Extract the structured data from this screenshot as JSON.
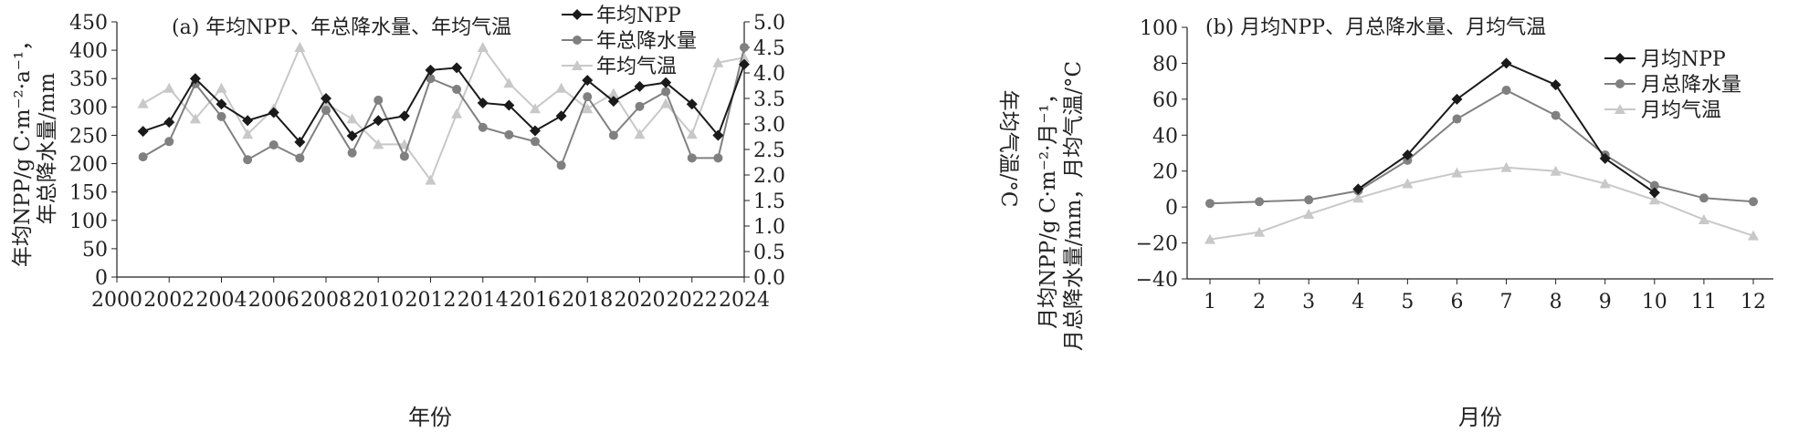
{
  "chart_data": [
    {
      "type": "line",
      "title": "(a) 年均NPP、年总降水量、年均气温",
      "xlabel": "年份",
      "ylabel": "年均NPP/g C·m⁻²·a⁻¹，年总降水量/mm",
      "ylabel_line1": "年均NPP/g C·m⁻²·a⁻¹，",
      "ylabel_line2": "年总降水量/mm",
      "y2label": "年均气温/°C",
      "xlim": [
        2000,
        2024
      ],
      "ylim": [
        0,
        450
      ],
      "y2lim": [
        0.0,
        5.0
      ],
      "xticks": [
        "2000",
        "2002",
        "2004",
        "2006",
        "2008",
        "2010",
        "2012",
        "2014",
        "2016",
        "2018",
        "2020",
        "2022",
        "2024"
      ],
      "yticks": [
        "0",
        "50",
        "100",
        "150",
        "200",
        "250",
        "300",
        "350",
        "400",
        "450"
      ],
      "y2ticks": [
        "0.0",
        "0.5",
        "1.0",
        "1.5",
        "2.0",
        "2.5",
        "3.0",
        "3.5",
        "4.0",
        "4.5",
        "5.0"
      ],
      "legend_position": "top-right",
      "x": [
        2001,
        2002,
        2003,
        2004,
        2005,
        2006,
        2007,
        2008,
        2009,
        2010,
        2011,
        2012,
        2013,
        2014,
        2015,
        2016,
        2017,
        2018,
        2019,
        2020,
        2021,
        2022,
        2023,
        2024
      ],
      "series": [
        {
          "name": "年均NPP",
          "axis": "left",
          "marker": "diamond",
          "color": "#1a1a1a",
          "values": [
            257,
            273,
            350,
            305,
            276,
            290,
            238,
            315,
            249,
            276,
            284,
            365,
            369,
            307,
            303,
            258,
            284,
            347,
            310,
            336,
            343,
            305,
            250,
            375
          ]
        },
        {
          "name": "年总降水量",
          "axis": "left",
          "marker": "circle",
          "color": "#808080",
          "values": [
            212,
            239,
            341,
            283,
            207,
            233,
            210,
            294,
            219,
            312,
            213,
            350,
            331,
            264,
            251,
            239,
            197,
            318,
            250,
            301,
            327,
            210,
            210,
            405
          ]
        },
        {
          "name": "年均气温",
          "axis": "right",
          "marker": "triangle",
          "color": "#c8c8c8",
          "values": [
            3.4,
            3.7,
            3.1,
            3.7,
            2.8,
            3.3,
            4.5,
            3.4,
            3.1,
            2.6,
            2.6,
            1.9,
            3.2,
            4.5,
            3.8,
            3.3,
            3.7,
            3.3,
            3.6,
            2.8,
            3.4,
            2.8,
            4.2,
            4.3
          ]
        }
      ]
    },
    {
      "type": "line",
      "title": "(b) 月均NPP、月总降水量、月均气温",
      "xlabel": "月份",
      "ylabel": "月均NPP/g C·m⁻²·月⁻¹，月总降水量/mm，月均气温/°C",
      "ylabel_line1": "月均NPP/g C·m⁻²·月⁻¹，",
      "ylabel_line2": "月总降水量/mm，月均气温/°C",
      "xlim": [
        1,
        12
      ],
      "ylim": [
        -40,
        100
      ],
      "xticks": [
        "1",
        "2",
        "3",
        "4",
        "5",
        "6",
        "7",
        "8",
        "9",
        "10",
        "11",
        "12"
      ],
      "yticks": [
        "−40",
        "−20",
        "0",
        "20",
        "40",
        "60",
        "80",
        "100"
      ],
      "legend_position": "top-right",
      "x": [
        1,
        2,
        3,
        4,
        5,
        6,
        7,
        8,
        9,
        10,
        11,
        12
      ],
      "series": [
        {
          "name": "月均NPP",
          "marker": "diamond",
          "color": "#1a1a1a",
          "x": [
            4,
            5,
            6,
            7,
            8,
            9,
            10
          ],
          "values": [
            10,
            29,
            60,
            80,
            68,
            27,
            8
          ]
        },
        {
          "name": "月总降水量",
          "marker": "circle",
          "color": "#808080",
          "x": [
            1,
            2,
            3,
            4,
            5,
            6,
            7,
            8,
            9,
            10,
            11,
            12
          ],
          "values": [
            2,
            3,
            4,
            9,
            26,
            49,
            65,
            51,
            29,
            12,
            5,
            3
          ]
        },
        {
          "name": "月均气温",
          "marker": "triangle",
          "color": "#c8c8c8",
          "x": [
            1,
            2,
            3,
            4,
            5,
            6,
            7,
            8,
            9,
            10,
            11,
            12
          ],
          "values": [
            -18,
            -14,
            -4,
            5,
            13,
            19,
            22,
            20,
            13,
            4,
            -7,
            -16
          ]
        }
      ]
    }
  ]
}
